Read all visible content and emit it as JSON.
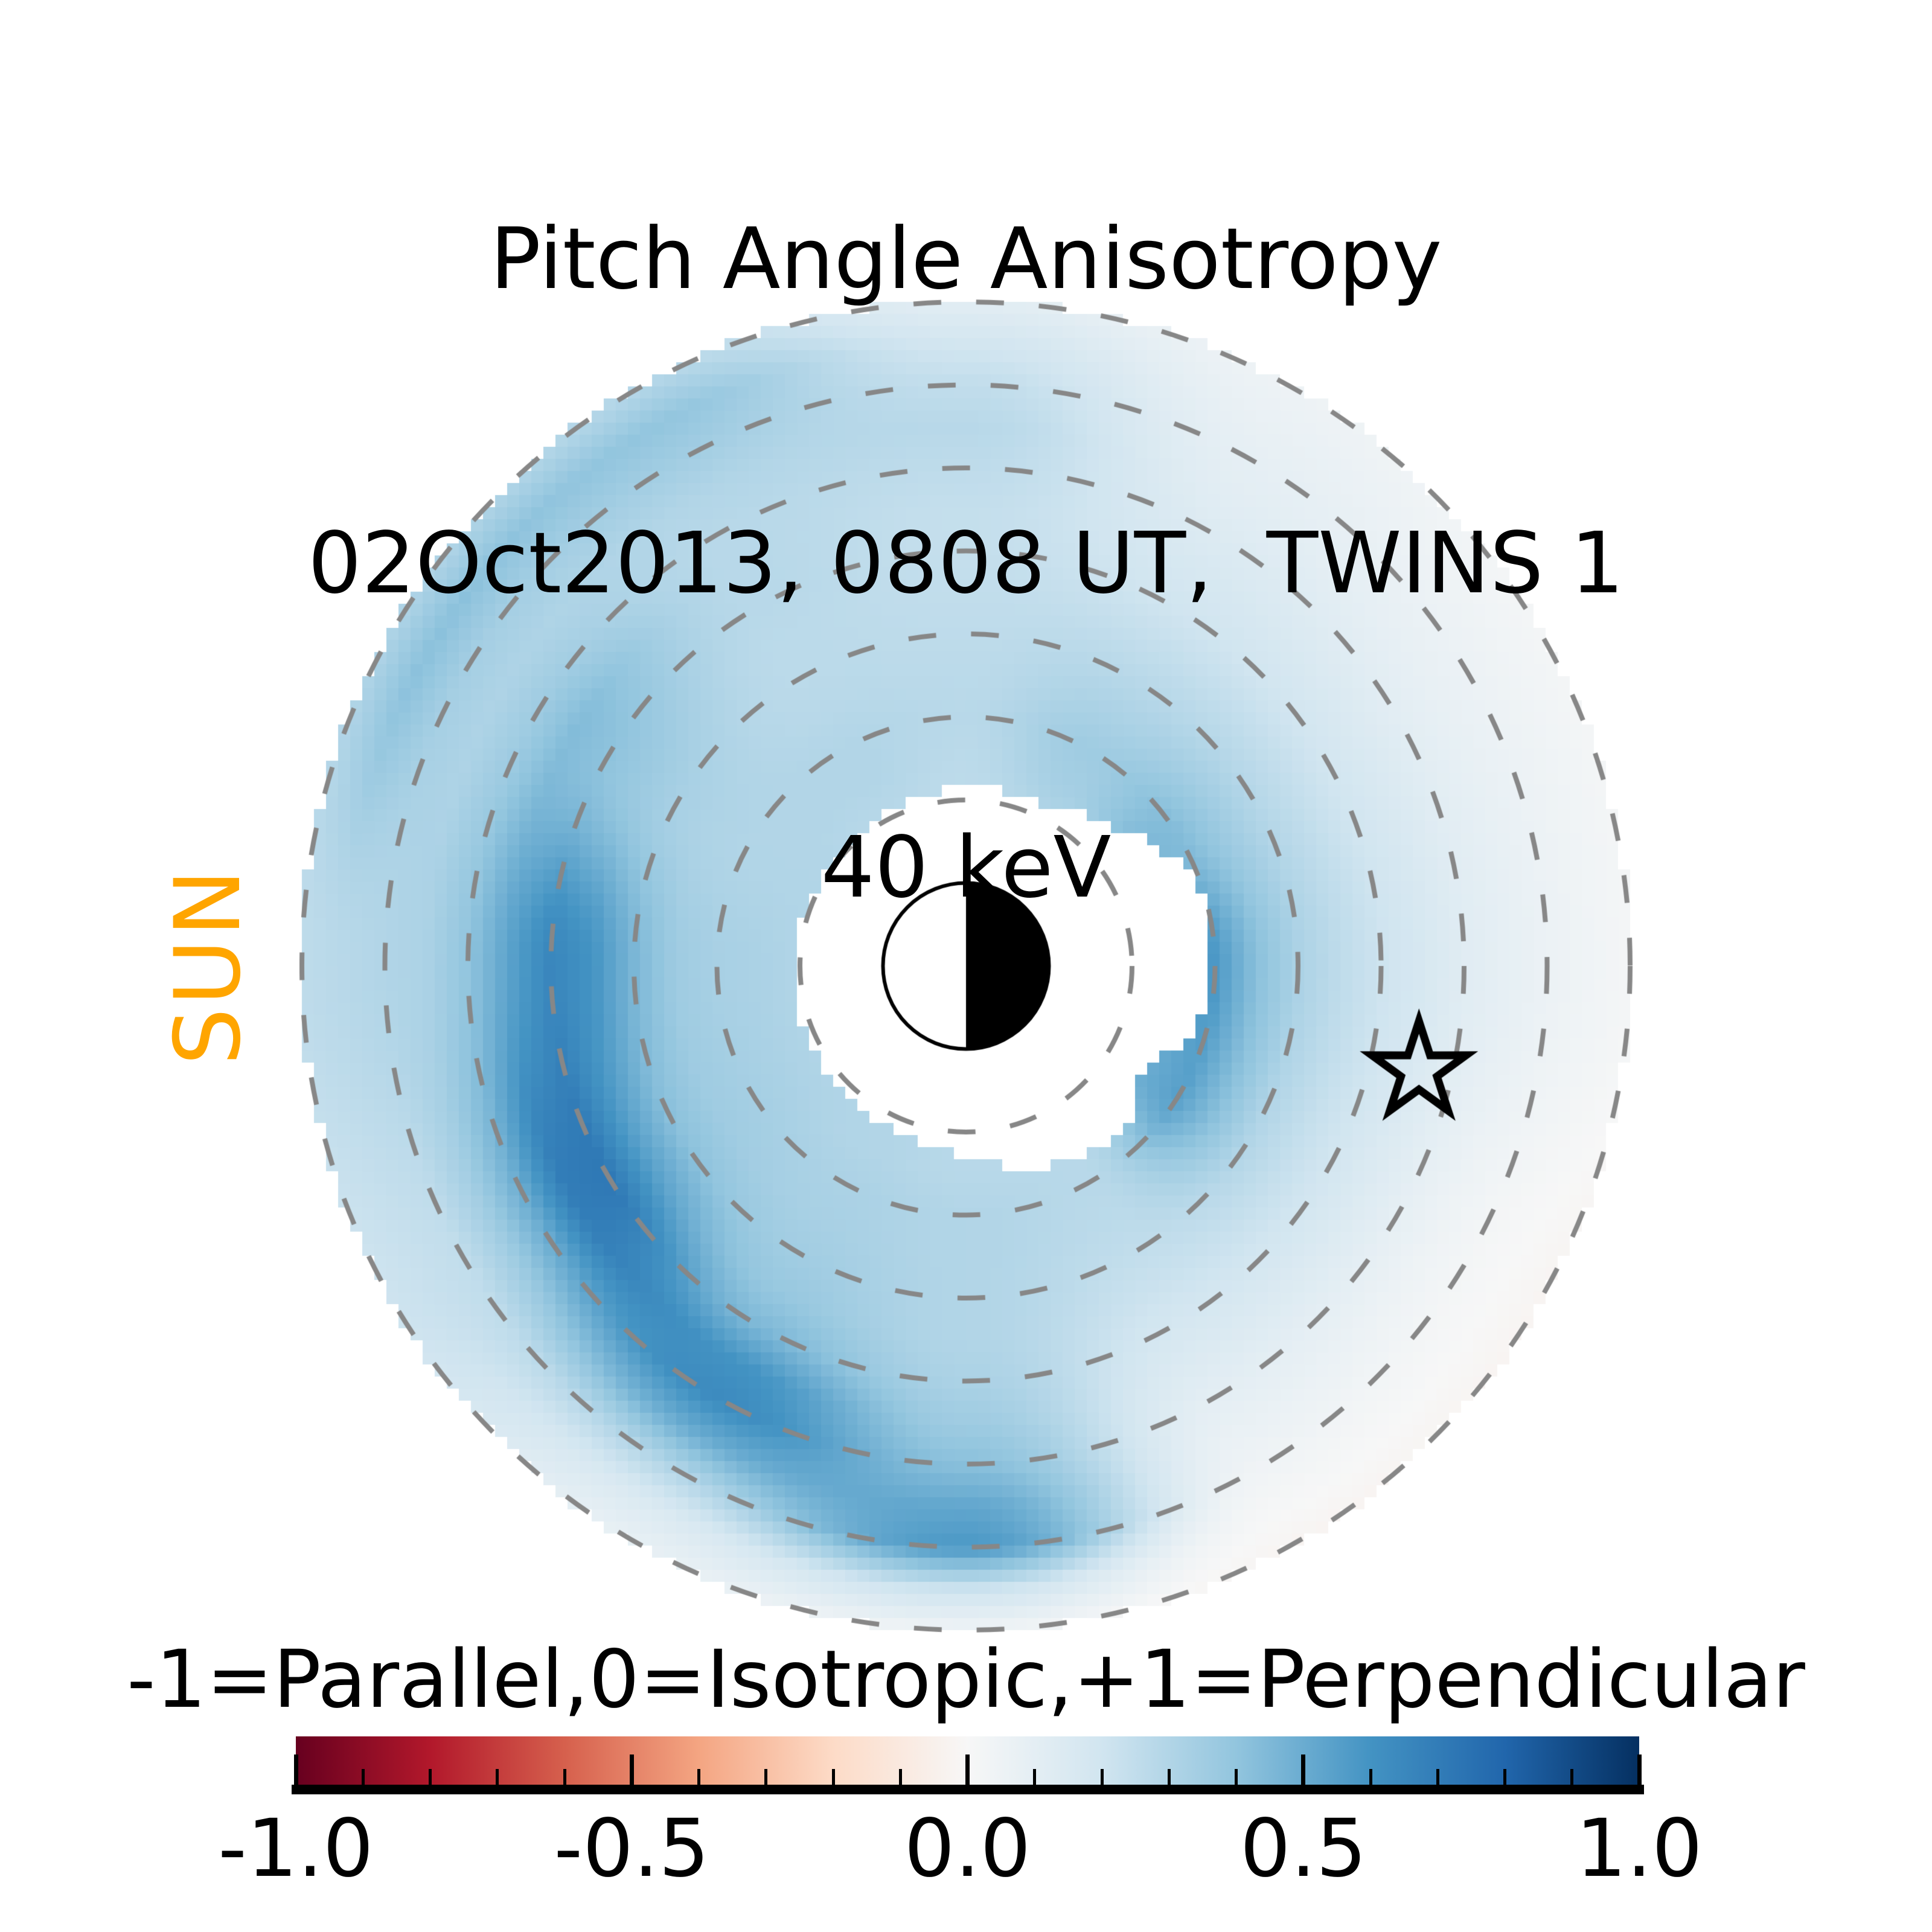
{
  "title": {
    "line1": "Pitch Angle Anisotropy",
    "line2": "02Oct2013, 0808 UT,  TWINS 1",
    "line3": "40 keV"
  },
  "sun_label": "SUN",
  "colors": {
    "sun_orange": "#FFA500",
    "ring_dash_gray": "#878787",
    "marker_black": "#000000",
    "background": "#ffffff"
  },
  "chart_data": {
    "type": "heatmap",
    "projection": "polar",
    "title": "Pitch Angle Anisotropy",
    "datetime": "02Oct2013, 0808 UT",
    "instrument": "TWINS 1",
    "energy": "40 keV",
    "legend": "-1=Parallel,0=Isotropic,+1=Perpendicular",
    "value_range": [
      -1,
      1
    ],
    "sun_direction": "left",
    "rings_L": [
      2,
      3,
      4,
      5,
      6,
      7,
      8
    ],
    "outer_L": 8,
    "earth": {
      "dayside": "left-white",
      "nightside": "right-black",
      "radius_L": 1
    },
    "star_marker": {
      "L": 5.6,
      "azimuth_deg": -13
    },
    "azimuth_deg": [
      0,
      30,
      60,
      90,
      120,
      150,
      180,
      210,
      240,
      270,
      300,
      330
    ],
    "L_grid": [
      1.5,
      2,
      2.5,
      3,
      3.5,
      4,
      4.5,
      5,
      5.5,
      6,
      6.5,
      7,
      7.5,
      8
    ],
    "anisotropy": [
      [
        0.3,
        0.34,
        0.55,
        0.58,
        0.42,
        0.32,
        0.26,
        0.21,
        0.17,
        0.12,
        0.09,
        0.06,
        0.04,
        0.02
      ],
      [
        0.3,
        0.34,
        0.46,
        0.44,
        0.36,
        0.29,
        0.24,
        0.19,
        0.15,
        0.11,
        0.08,
        0.06,
        0.04,
        0.02
      ],
      [
        0.28,
        0.3,
        0.34,
        0.36,
        0.32,
        0.28,
        0.24,
        0.2,
        0.17,
        0.14,
        0.11,
        0.09,
        0.07,
        0.05
      ],
      [
        0.26,
        0.26,
        0.27,
        0.28,
        0.27,
        0.26,
        0.25,
        0.24,
        0.24,
        0.26,
        0.28,
        0.25,
        0.19,
        0.11
      ],
      [
        0.28,
        0.28,
        0.3,
        0.3,
        0.28,
        0.27,
        0.27,
        0.28,
        0.28,
        0.28,
        0.3,
        0.35,
        0.4,
        0.29
      ],
      [
        0.28,
        0.3,
        0.3,
        0.3,
        0.31,
        0.33,
        0.37,
        0.41,
        0.44,
        0.36,
        0.31,
        0.34,
        0.42,
        0.31
      ],
      [
        0.28,
        0.3,
        0.32,
        0.33,
        0.36,
        0.46,
        0.6,
        0.66,
        0.54,
        0.4,
        0.32,
        0.3,
        0.28,
        0.26
      ],
      [
        0.28,
        0.3,
        0.32,
        0.34,
        0.36,
        0.42,
        0.55,
        0.72,
        0.7,
        0.5,
        0.35,
        0.25,
        0.23,
        0.21
      ],
      [
        0.28,
        0.3,
        0.3,
        0.32,
        0.33,
        0.35,
        0.38,
        0.45,
        0.6,
        0.64,
        0.5,
        0.3,
        0.15,
        0.08
      ],
      [
        0.28,
        0.28,
        0.28,
        0.3,
        0.3,
        0.3,
        0.3,
        0.32,
        0.36,
        0.42,
        0.52,
        0.58,
        0.22,
        0.04
      ],
      [
        0.28,
        0.28,
        0.28,
        0.28,
        0.27,
        0.25,
        0.22,
        0.18,
        0.14,
        0.1,
        0.07,
        0.04,
        0.01,
        -0.02
      ],
      [
        0.3,
        0.32,
        0.5,
        0.55,
        0.42,
        0.3,
        0.24,
        0.19,
        0.14,
        0.09,
        0.05,
        0.02,
        0.0,
        -0.02
      ]
    ],
    "no_data_mask_radius_L_per_15deg": [
      2.9,
      3.05,
      2.75,
      2.4,
      2.18,
      2.15,
      2.15,
      2.11,
      2.07,
      2.04,
      2.04,
      2.05,
      2.07,
      2.07,
      2.09,
      2.11,
      2.15,
      2.17,
      2.3,
      2.5,
      2.69,
      2.73,
      2.45,
      2.91
    ],
    "colormap": {
      "name": "RdBu",
      "stops": [
        [
          103,
          0,
          31
        ],
        [
          178,
          24,
          43
        ],
        [
          214,
          96,
          77
        ],
        [
          244,
          165,
          130
        ],
        [
          253,
          219,
          199
        ],
        [
          247,
          247,
          247
        ],
        [
          209,
          229,
          240
        ],
        [
          146,
          197,
          222
        ],
        [
          67,
          147,
          195
        ],
        [
          33,
          102,
          172
        ],
        [
          5,
          48,
          97
        ]
      ]
    },
    "colorbar": {
      "ticks_major": [
        -1.0,
        -0.5,
        0.0,
        0.5,
        1.0
      ],
      "tick_labels": [
        "-1.0",
        "-0.5",
        "0.0",
        "0.5",
        "1.0"
      ],
      "minor_tick_step": 0.1
    }
  }
}
